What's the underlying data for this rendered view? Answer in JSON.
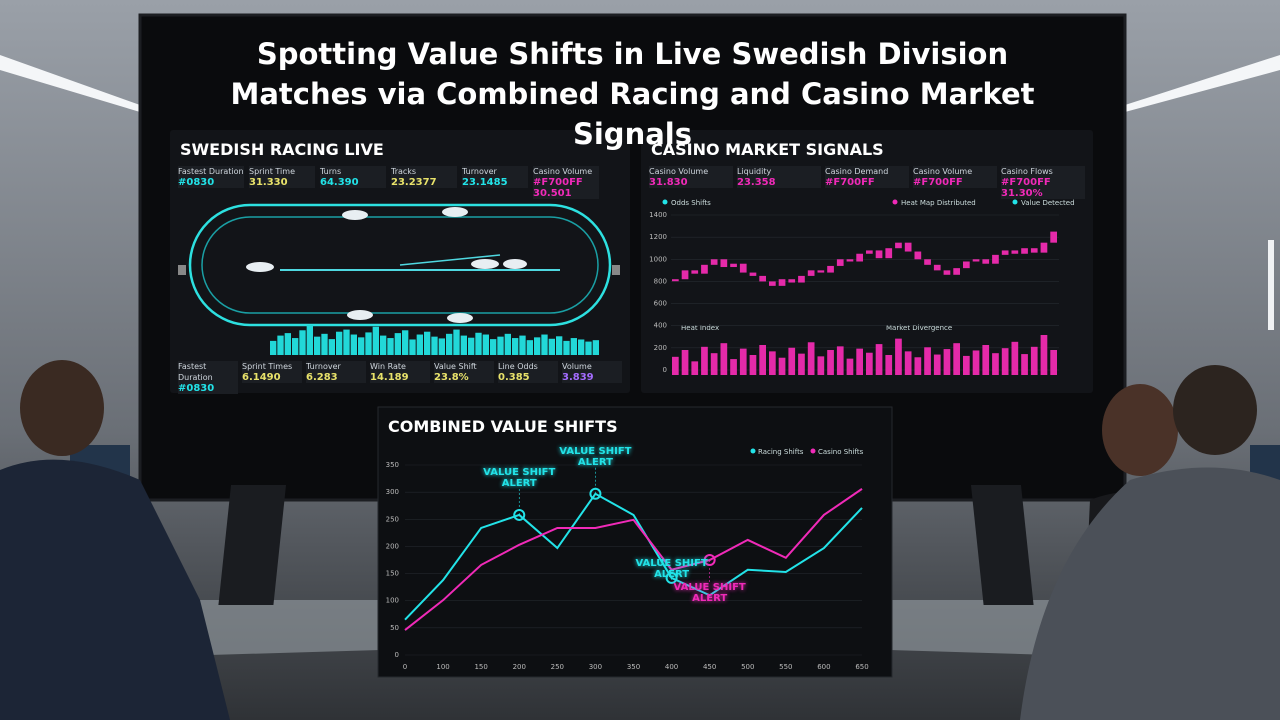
{
  "title": "Spotting Value Shifts in Live Swedish Division Matches via Combined Racing and Casino Market Signals",
  "racing_panel": {
    "heading": "SWEDISH RACING LIVE",
    "stats_top": [
      {
        "label": "Fastest Duration",
        "value": "#0830"
      },
      {
        "label": "Sprint Time",
        "value": "31.330"
      },
      {
        "label": "Turns",
        "value": "64.390"
      },
      {
        "label": "Tracks",
        "value": "23.2377"
      },
      {
        "label": "Turnover",
        "value": "23.1485"
      },
      {
        "label": "Casino Volume",
        "value": "#F700FF 30.501"
      }
    ],
    "stats_bottom": [
      {
        "label": "Fastest Duration",
        "value": "#0830"
      },
      {
        "label": "Sprint Times",
        "value": "6.1490"
      },
      {
        "label": "Turnover",
        "value": "6.283"
      },
      {
        "label": "Win Rate",
        "value": "14.189"
      },
      {
        "label": "Value Shift",
        "value": "23.8%"
      },
      {
        "label": "Line Odds",
        "value": "0.385"
      },
      {
        "label": "Volume",
        "value": "3.839"
      }
    ],
    "activity": [
      40,
      55,
      62,
      48,
      70,
      85,
      52,
      60,
      45,
      66,
      72,
      58,
      50,
      64,
      80,
      55,
      48,
      62,
      70,
      44,
      58,
      66,
      52,
      47,
      60,
      72,
      55,
      49,
      63,
      58,
      45,
      52,
      60,
      48,
      55,
      42,
      50,
      58,
      46,
      53,
      40,
      48,
      44,
      38,
      42
    ]
  },
  "casino_panel": {
    "heading": "CASINO MARKET SIGNALS",
    "stats": [
      {
        "label": "Casino Volume",
        "value": "31.830"
      },
      {
        "label": "Liquidity",
        "value": "23.358"
      },
      {
        "label": "Casino Demand",
        "value": "#F700FF"
      },
      {
        "label": "Casino Volume",
        "value": "#F700FF"
      },
      {
        "label": "Casino Flows",
        "value": "#F700FF 31.30%"
      }
    ],
    "legend": [
      "Odds Shifts",
      "Heat Map Distributed",
      "Value Detected"
    ],
    "volume_legend": [
      "Heat Index",
      "Market Divergence"
    ],
    "ylim": [
      0,
      1400
    ],
    "yticks": [
      0,
      200,
      400,
      600,
      800,
      1000,
      1200,
      1400
    ],
    "prices": [
      820,
      900,
      870,
      950,
      1000,
      930,
      960,
      880,
      850,
      800,
      760,
      820,
      790,
      850,
      900,
      880,
      940,
      1000,
      980,
      1050,
      1080,
      1010,
      1100,
      1150,
      1070,
      1000,
      950,
      900,
      860,
      920,
      980,
      1000,
      960,
      1040,
      1080,
      1050,
      1100,
      1060,
      1150,
      1250
    ],
    "volume": [
      40,
      55,
      30,
      62,
      48,
      70,
      35,
      58,
      44,
      66,
      52,
      38,
      60,
      47,
      72,
      41,
      55,
      63,
      36,
      58,
      49,
      68,
      44,
      80,
      52,
      39,
      61,
      45,
      57,
      70,
      42,
      54,
      66,
      48,
      59,
      73,
      46,
      62,
      88,
      55
    ]
  },
  "combined_panel": {
    "heading": "COMBINED VALUE SHIFTS",
    "categories": [
      "0",
      "100",
      "150",
      "200",
      "250",
      "300",
      "350",
      "400",
      "450",
      "500",
      "550",
      "600",
      "650"
    ],
    "ylim": [
      0,
      350
    ],
    "yticks": [
      0,
      50,
      100,
      150,
      200,
      250,
      300,
      350
    ],
    "series": [
      {
        "name": "Racing Shifts",
        "color": "#22e3e8",
        "values": [
          65,
          138,
          234,
          258,
          197,
          297,
          258,
          142,
          110,
          157,
          153,
          197,
          271
        ]
      },
      {
        "name": "Casino Shifts",
        "color": "#f02ab8",
        "values": [
          46,
          101,
          166,
          203,
          234,
          234,
          249,
          157,
          175,
          212,
          179,
          258,
          306
        ]
      }
    ],
    "alerts": [
      {
        "text": "VALUE SHIFT ALERT",
        "series": 0,
        "index": 3
      },
      {
        "text": "VALUE SHIFT ALERT",
        "series": 0,
        "index": 5
      },
      {
        "text": "VALUE SHIFT ALERT",
        "series": 0,
        "index": 7
      },
      {
        "text": "VALUE SHIFT ALERT",
        "series": 1,
        "index": 8
      }
    ]
  }
}
